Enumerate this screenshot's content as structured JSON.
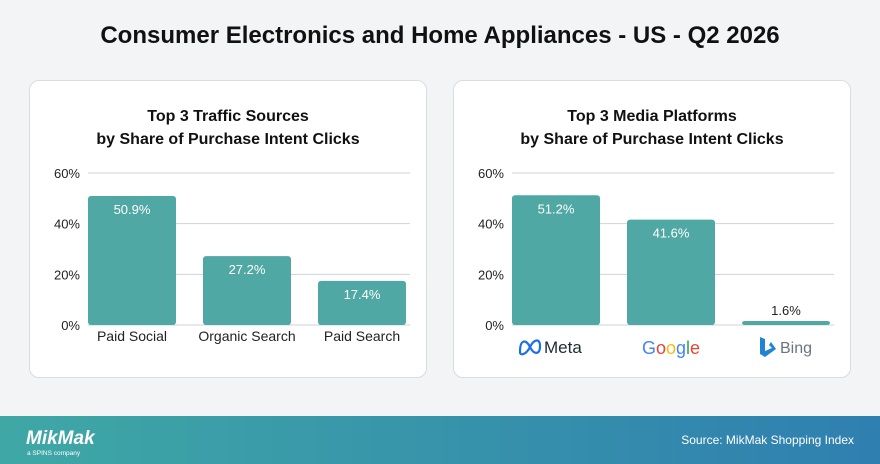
{
  "page": {
    "title": "Consumer Electronics and Home Appliances - US - Q2 2026"
  },
  "colors": {
    "bar": "#4fa8a3",
    "grid": "#cfd3d8",
    "bar_label_inside": "#ffffff",
    "bar_label_outside": "#222222"
  },
  "chart_data": [
    {
      "type": "bar",
      "title_lines": [
        "Top 3 Traffic Sources",
        "by Share of Purchase Intent Clicks"
      ],
      "categories": [
        "Paid Social",
        "Organic Search",
        "Paid Search"
      ],
      "values": [
        50.9,
        27.2,
        17.4
      ],
      "value_labels": [
        "50.9%",
        "27.2%",
        "17.4%"
      ],
      "ylim": [
        0,
        60
      ],
      "yticks": [
        "0%",
        "20%",
        "40%",
        "60%"
      ],
      "grid": true,
      "legend": "none"
    },
    {
      "type": "bar",
      "title_lines": [
        "Top 3 Media Platforms",
        "by Share of Purchase Intent Clicks"
      ],
      "categories": [
        "Meta",
        "Google",
        "Bing"
      ],
      "category_icons": [
        "meta-logo-icon",
        "google-logo-icon",
        "bing-logo-icon"
      ],
      "values": [
        51.2,
        41.6,
        1.6
      ],
      "value_labels": [
        "51.2%",
        "41.6%",
        "1.6%"
      ],
      "ylim": [
        0,
        60
      ],
      "yticks": [
        "0%",
        "20%",
        "40%",
        "60%"
      ],
      "grid": true,
      "legend": "none"
    }
  ],
  "footer": {
    "logo_text": "MikMak",
    "logo_subtext": "a SPINS company",
    "source": "Source: MikMak Shopping Index"
  }
}
